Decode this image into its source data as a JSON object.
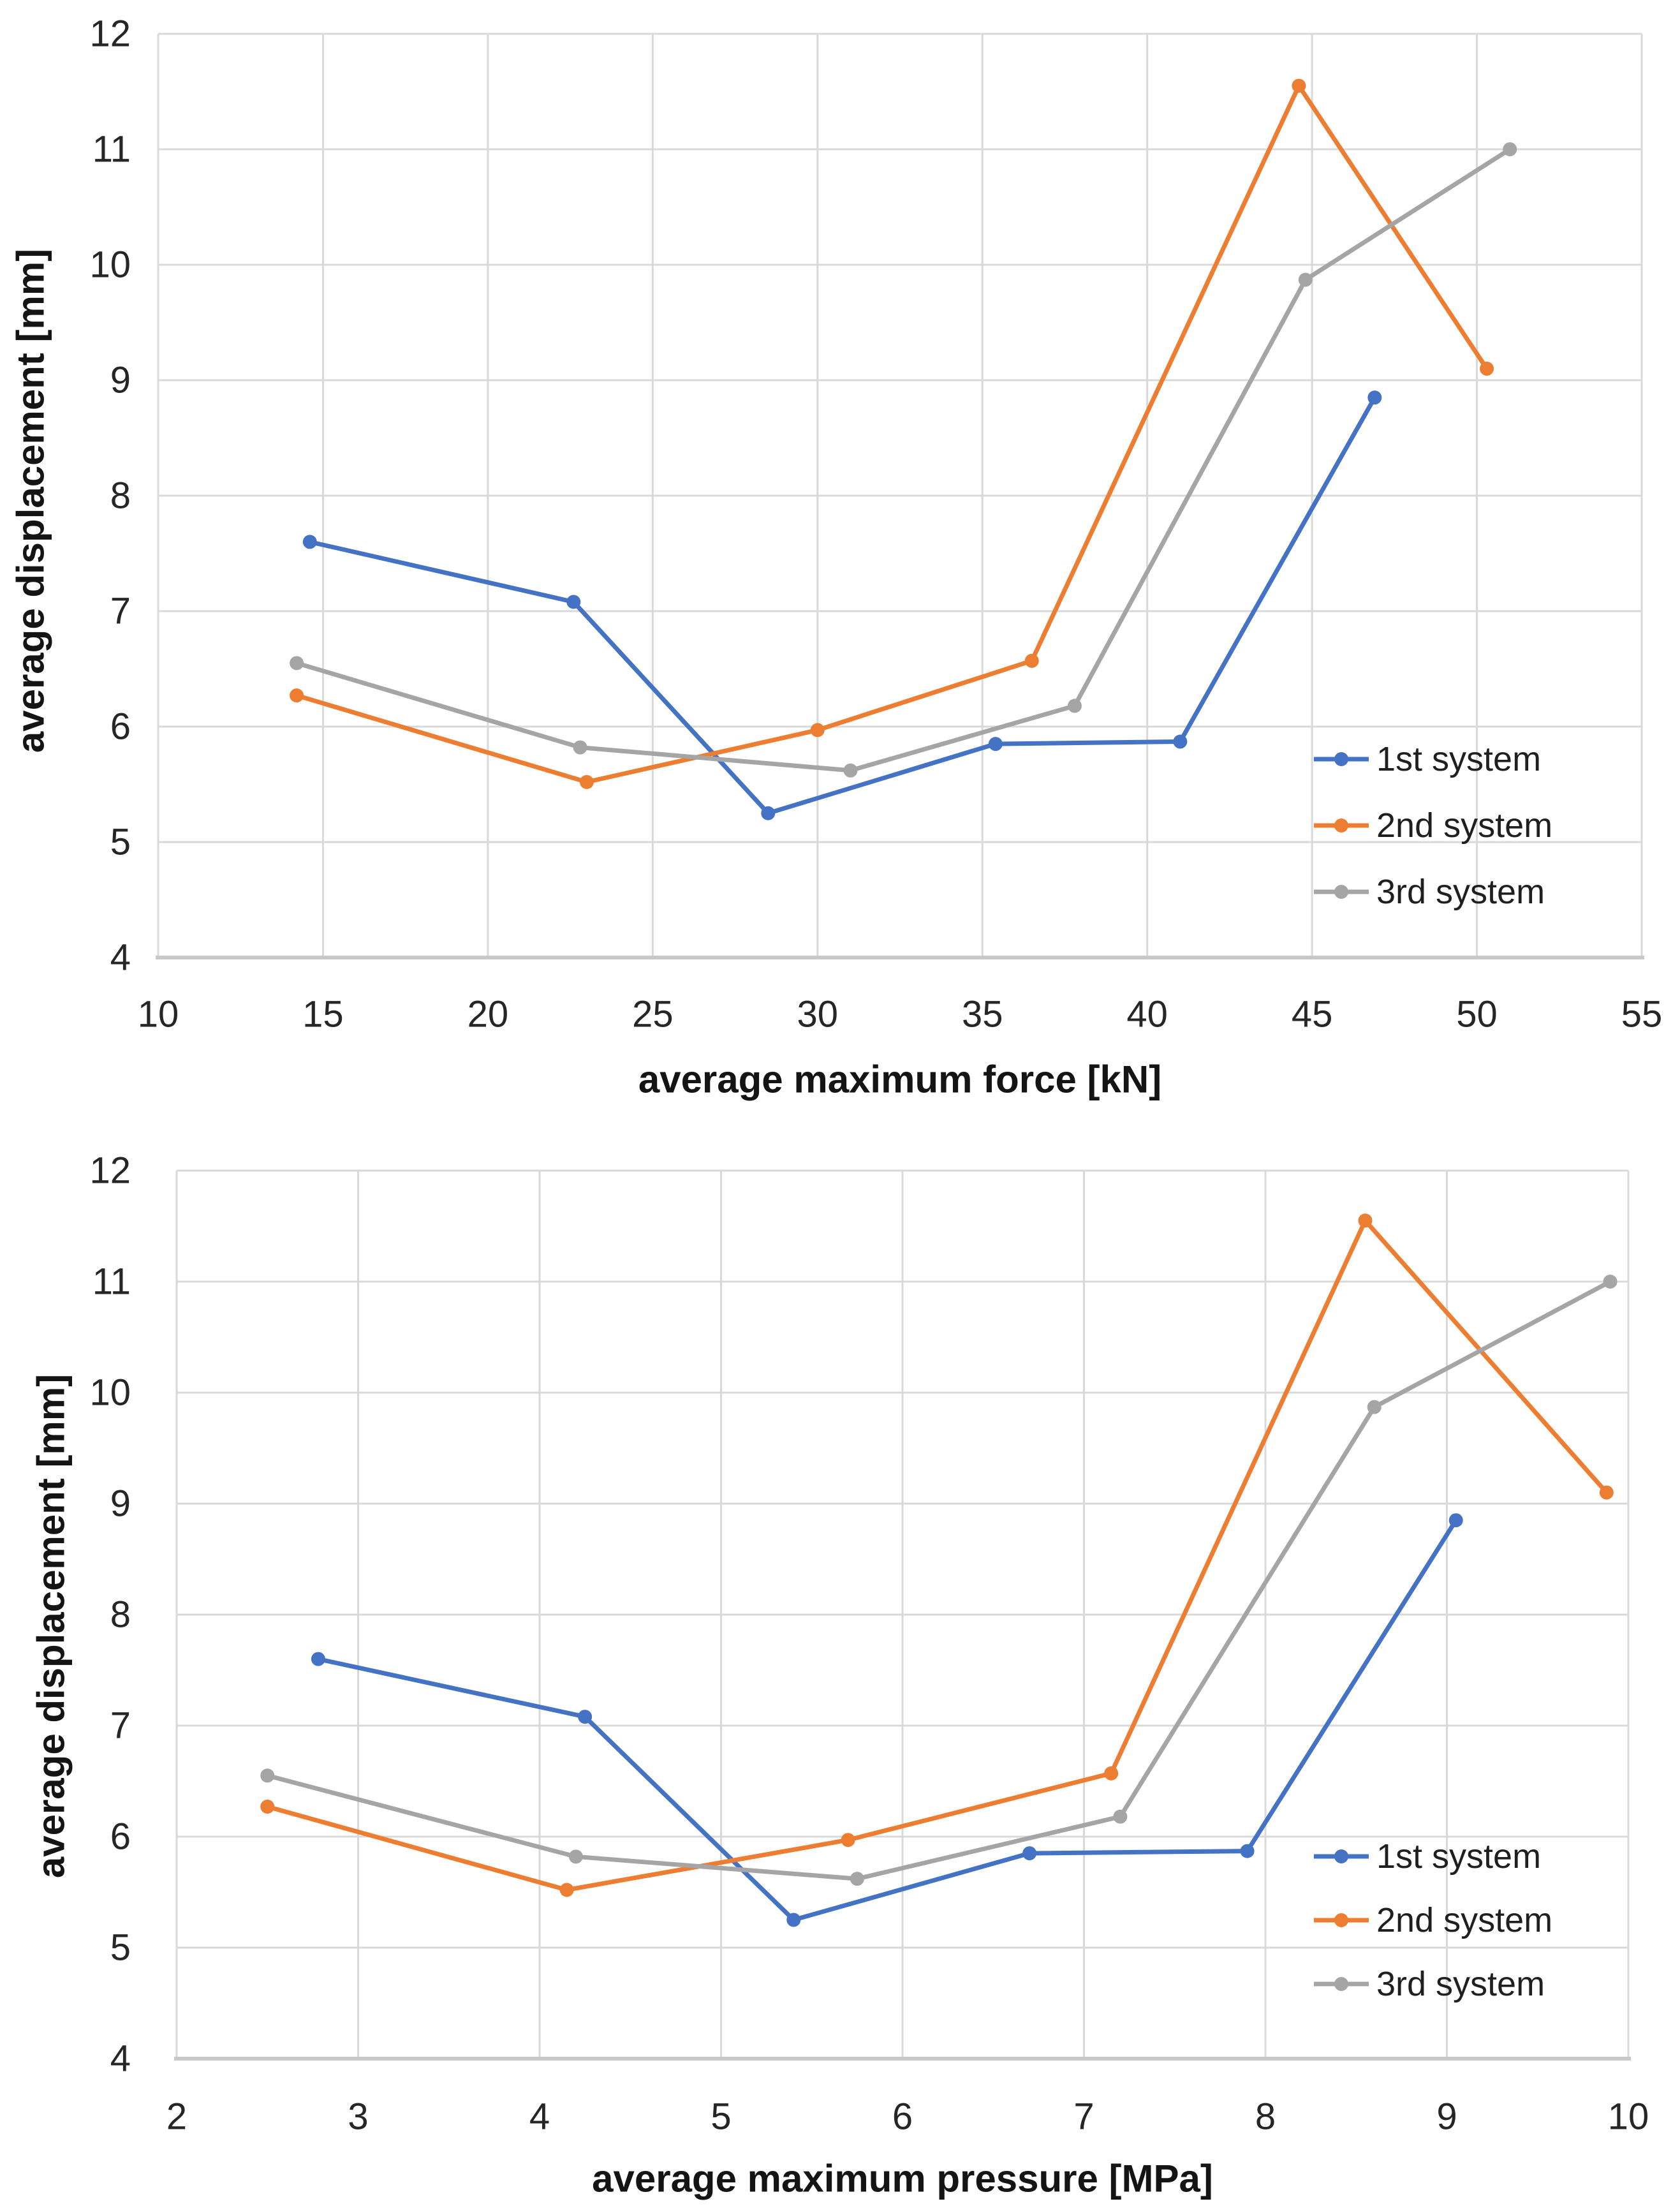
{
  "page": {
    "background": "#ffffff"
  },
  "colors": {
    "gridline": "#D9D9D9",
    "axis_line": "#C8C8C8",
    "tick_text": "#262626",
    "title_text": "#141414",
    "series1": "#4472C4",
    "series2": "#ED7D31",
    "series3": "#A5A5A5"
  },
  "chart_data": [
    {
      "type": "line",
      "title": "",
      "name": "force-displacement-chart",
      "xlabel": "average maximum force [kN]",
      "ylabel": "average displacement [mm]",
      "xlim": [
        10,
        55
      ],
      "ylim": [
        4,
        12
      ],
      "xticks": [
        10,
        15,
        20,
        25,
        30,
        35,
        40,
        45,
        50,
        55
      ],
      "yticks": [
        4,
        5,
        6,
        7,
        8,
        9,
        10,
        11,
        12
      ],
      "grid": true,
      "legend_position": "inside-right",
      "series": [
        {
          "name": "1st system",
          "color": "#4472C4",
          "points": [
            [
              14.6,
              7.6
            ],
            [
              22.6,
              7.08
            ],
            [
              28.5,
              5.25
            ],
            [
              35.4,
              5.85
            ],
            [
              41.0,
              5.87
            ],
            [
              46.9,
              8.85
            ]
          ]
        },
        {
          "name": "2nd system",
          "color": "#ED7D31",
          "points": [
            [
              14.2,
              6.27
            ],
            [
              23.0,
              5.52
            ],
            [
              30.0,
              5.97
            ],
            [
              36.5,
              6.57
            ],
            [
              44.6,
              11.55
            ],
            [
              50.3,
              9.1
            ]
          ]
        },
        {
          "name": "3rd system",
          "color": "#A5A5A5",
          "points": [
            [
              14.2,
              6.55
            ],
            [
              22.8,
              5.82
            ],
            [
              31.0,
              5.62
            ],
            [
              37.8,
              6.18
            ],
            [
              44.8,
              9.87
            ],
            [
              51.0,
              11.0
            ]
          ]
        }
      ]
    },
    {
      "type": "line",
      "title": "",
      "name": "pressure-displacement-chart",
      "xlabel": "average maximum pressure [MPa]",
      "ylabel": "average displacement [mm]",
      "xlim": [
        2,
        10
      ],
      "ylim": [
        4,
        12
      ],
      "xticks": [
        2,
        3,
        4,
        5,
        6,
        7,
        8,
        9,
        10
      ],
      "yticks": [
        4,
        5,
        6,
        7,
        8,
        9,
        10,
        11,
        12
      ],
      "grid": true,
      "legend_position": "inside-right",
      "series": [
        {
          "name": "1st system",
          "color": "#4472C4",
          "points": [
            [
              2.78,
              7.6
            ],
            [
              4.25,
              7.08
            ],
            [
              5.4,
              5.25
            ],
            [
              6.7,
              5.85
            ],
            [
              7.9,
              5.87
            ],
            [
              9.05,
              8.85
            ]
          ]
        },
        {
          "name": "2nd system",
          "color": "#ED7D31",
          "points": [
            [
              2.5,
              6.27
            ],
            [
              4.15,
              5.52
            ],
            [
              5.7,
              5.97
            ],
            [
              7.15,
              6.57
            ],
            [
              8.55,
              11.55
            ],
            [
              9.88,
              9.1
            ]
          ]
        },
        {
          "name": "3rd system",
          "color": "#A5A5A5",
          "points": [
            [
              2.5,
              6.55
            ],
            [
              4.2,
              5.82
            ],
            [
              5.75,
              5.62
            ],
            [
              7.2,
              6.18
            ],
            [
              8.6,
              9.87
            ],
            [
              9.9,
              11.0
            ]
          ]
        }
      ]
    }
  ]
}
